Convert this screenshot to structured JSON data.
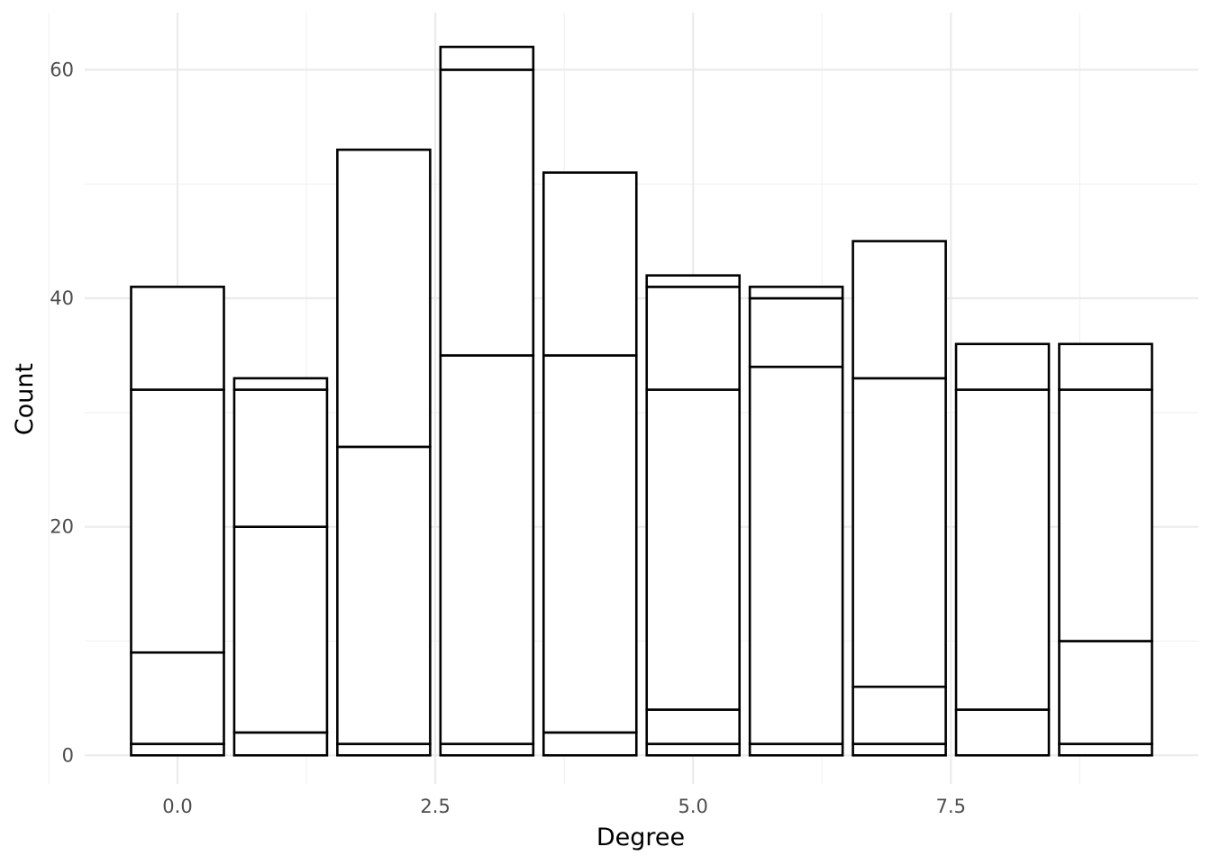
{
  "chart_data": {
    "type": "bar",
    "stacked": true,
    "xlabel": "Degree",
    "ylabel": "Count",
    "x": [
      0,
      1,
      2,
      3,
      4,
      5,
      6,
      7,
      8,
      9
    ],
    "stacks": [
      [
        1,
        8,
        23,
        9
      ],
      [
        2,
        18,
        12,
        1
      ],
      [
        1,
        26,
        26
      ],
      [
        1,
        34,
        25,
        2
      ],
      [
        2,
        33,
        16
      ],
      [
        1,
        3,
        28,
        9,
        1
      ],
      [
        1,
        33,
        6,
        1
      ],
      [
        1,
        5,
        27,
        12
      ],
      [
        4,
        28,
        4
      ],
      [
        1,
        9,
        22,
        4
      ]
    ],
    "totals": [
      41,
      33,
      53,
      62,
      51,
      42,
      41,
      45,
      36,
      36
    ],
    "xlim": [
      -0.9,
      9.9
    ],
    "ylim": [
      -2.5,
      65
    ],
    "x_ticks": [
      0,
      2.5,
      5,
      7.5
    ],
    "x_tick_labels": [
      "0.0",
      "2.5",
      "5.0",
      "7.5"
    ],
    "y_ticks": [
      0,
      20,
      40,
      60
    ],
    "y_tick_labels": [
      "0",
      "20",
      "40",
      "60"
    ],
    "bar_fill": "#ffffff",
    "bar_outline": "#000000",
    "grid": true,
    "legend": "none"
  }
}
